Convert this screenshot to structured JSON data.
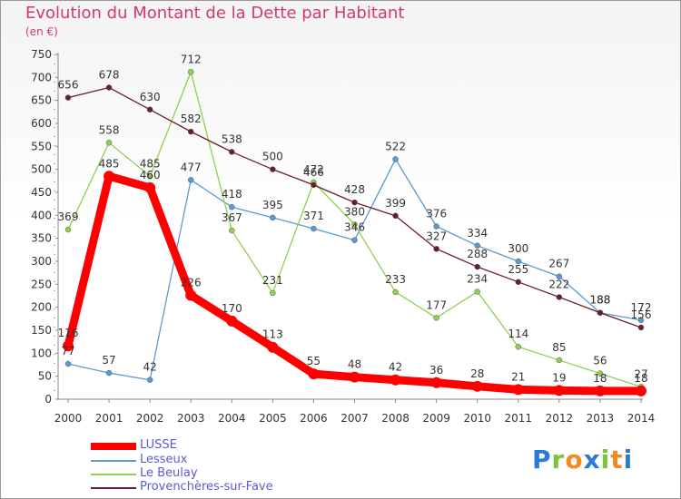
{
  "chart_data": {
    "type": "line",
    "title": "Evolution du Montant de la Dette par Habitant",
    "subtitle": "(en €)",
    "x": [
      "2000",
      "2001",
      "2002",
      "2003",
      "2004",
      "2005",
      "2006",
      "2007",
      "2008",
      "2009",
      "2010",
      "2011",
      "2012",
      "2013",
      "2014"
    ],
    "ylim": [
      0,
      750
    ],
    "yticks": [
      0,
      50,
      100,
      150,
      200,
      250,
      300,
      350,
      400,
      450,
      500,
      550,
      600,
      650,
      700,
      750
    ],
    "grid": false,
    "legend_position": "bottom-left",
    "series": [
      {
        "name": "LUSSE",
        "color": "#ff0000",
        "values": [
          116,
          485,
          460,
          226,
          170,
          113,
          55,
          48,
          42,
          36,
          28,
          21,
          19,
          18,
          18
        ],
        "labels": [
          "116",
          "485",
          "460",
          "226",
          "170",
          "113",
          "55",
          "48",
          "42",
          "36",
          "28",
          "21",
          "19",
          "18",
          "18"
        ]
      },
      {
        "name": "Lesseux",
        "color": "#5b9bd5",
        "values": [
          77,
          57,
          42,
          477,
          418,
          395,
          371,
          346,
          522,
          376,
          334,
          300,
          267,
          188,
          172
        ],
        "labels": [
          "77",
          "57",
          "42",
          "477",
          "418",
          "395",
          "371",
          "346",
          "522",
          "376",
          "334",
          "300",
          "267",
          "188",
          "172"
        ]
      },
      {
        "name": "Le Beulay",
        "color": "#92d050",
        "values": [
          369,
          558,
          485,
          712,
          367,
          231,
          472,
          380,
          233,
          177,
          234,
          114,
          85,
          56,
          27
        ],
        "labels": [
          "369",
          "558",
          "485",
          "712",
          "367",
          "231",
          "472",
          "380",
          "233",
          "177",
          "234",
          "114",
          "85",
          "56",
          "27"
        ]
      },
      {
        "name": "Provenchères-sur-Fave",
        "color": "#6b1f2b",
        "values": [
          656,
          678,
          630,
          582,
          538,
          500,
          466,
          428,
          399,
          327,
          288,
          255,
          222,
          188,
          156
        ],
        "labels": [
          "656",
          "678",
          "630",
          "582",
          "538",
          "500",
          "466",
          "428",
          "399",
          "327",
          "288",
          "255",
          "222",
          "188",
          "156"
        ]
      }
    ]
  },
  "logo": {
    "text": "Proxiti"
  }
}
